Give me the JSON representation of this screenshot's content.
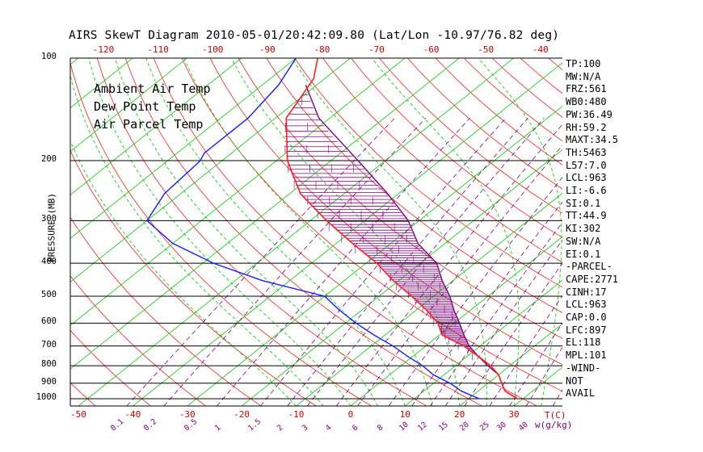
{
  "title": "AIRS SkewT Diagram 2010-05-01/20:42:09.80 (Lat/Lon -10.97/76.82 deg)",
  "legend": [
    {
      "label": "Ambient Air Temp",
      "color": "#ff2020"
    },
    {
      "label": "Dew Point Temp",
      "color": "#1a1aff"
    },
    {
      "label": "Air Parcel Temp",
      "color": "#800080"
    }
  ],
  "y_axis_label": "PRESSURE (MB)",
  "x_unit_label": "T(C)",
  "mixing_unit_label": "w(g/kg)",
  "indices": [
    "TP:100",
    "MW:N/A",
    "FRZ:561",
    "WB0:480",
    "PW:36.49",
    "RH:59.2",
    "MAXT:34.5",
    "TH:5463",
    "L57:7.0",
    "LCL:963",
    "LI:-6.6",
    "SI:0.1",
    "TT:44.9",
    "KI:302",
    "SW:N/A",
    "EI:0.1",
    "-PARCEL-",
    "CAPE:2771",
    "CINH:17",
    "LCL:963",
    "CAP:0.0",
    "LFC:897",
    "EL:118",
    "MPL:101",
    "-WIND-",
    "NOT",
    "AVAIL"
  ],
  "colors": {
    "isotherm": "#00cc00",
    "dry_adiabat": "#ff2020",
    "moist_adiabat": "#00cc00",
    "mixing_ratio": "#800080",
    "isobar": "#000000",
    "cape_hatch": "#800080"
  },
  "chart_data": {
    "type": "skew-t",
    "pressure_levels": [
      100,
      200,
      300,
      400,
      500,
      600,
      700,
      800,
      900,
      1000
    ],
    "pressure_tick_labels": [
      "100",
      "200",
      "300",
      "400",
      "500",
      "600",
      "700",
      "800",
      "900",
      "1000"
    ],
    "top_temp_ticks": [
      -120,
      -110,
      -100,
      -90,
      -80,
      -70,
      -60,
      -50,
      -40
    ],
    "bottom_temp_ticks": [
      -50,
      -40,
      -30,
      -20,
      -10,
      0,
      10,
      20,
      30
    ],
    "mixing_ratio_ticks": [
      "0.1",
      "0.2",
      "0.5",
      "1",
      "1.5",
      "2",
      "3",
      "4",
      "6",
      "8",
      "10",
      "12",
      "15",
      "20",
      "25",
      "30",
      "40"
    ],
    "ambient_temp": {
      "name": "Ambient Air Temp",
      "pressure": [
        100,
        115,
        150,
        200,
        250,
        300,
        350,
        400,
        450,
        500,
        550,
        600,
        650,
        700,
        750,
        800,
        850,
        900,
        950,
        975,
        1000
      ],
      "temp": [
        -86,
        -82,
        -78,
        -68,
        -58,
        -47,
        -37,
        -28,
        -21,
        -14,
        -8,
        -3,
        0.5,
        7,
        12,
        16.5,
        20,
        22.5,
        25,
        27,
        29
      ]
    },
    "dew_point": {
      "name": "Dew Point Temp",
      "pressure": [
        100,
        120,
        150,
        190,
        200,
        250,
        300,
        350,
        400,
        450,
        500,
        550,
        600,
        650,
        700,
        750,
        800,
        850,
        900,
        950,
        1000
      ],
      "temp": [
        -90,
        -87,
        -85,
        -85,
        -84,
        -83,
        -80,
        -70,
        -58,
        -45,
        -30,
        -24,
        -18,
        -12,
        -6,
        -1,
        4,
        8,
        13,
        17,
        22
      ]
    },
    "parcel_temp": {
      "name": "Air Parcel Temp",
      "pressure": [
        120,
        150,
        200,
        250,
        300,
        350,
        400,
        450,
        500,
        550,
        600,
        650,
        700,
        750,
        800,
        850,
        900,
        950,
        1000
      ],
      "temp": [
        -82,
        -72,
        -55,
        -42,
        -32,
        -25,
        -17,
        -12,
        -7,
        -3,
        1,
        4.5,
        8,
        12,
        16,
        20,
        22.5,
        25,
        29
      ]
    }
  }
}
